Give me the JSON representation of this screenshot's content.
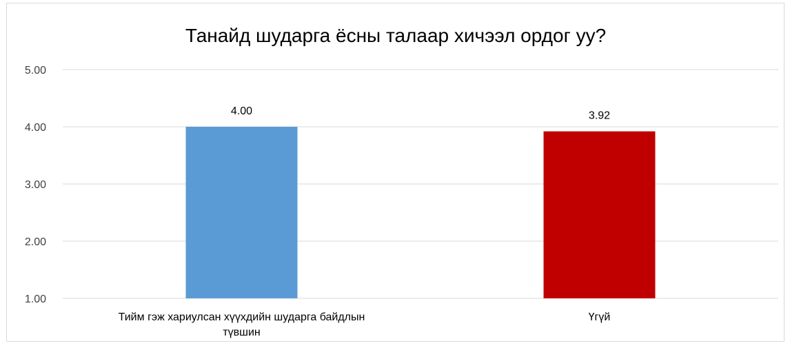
{
  "chart_data": {
    "type": "bar",
    "title": "Танайд шударга ёсны талаар хичээл ордог уу?",
    "categories": [
      [
        "Тийм гэж хариулсан хүүхдийн шударга байдлын",
        "түвшин"
      ],
      [
        "Үгүй"
      ]
    ],
    "values": [
      4.0,
      3.92
    ],
    "data_labels": [
      "4.00",
      "3.92"
    ],
    "bar_colors": [
      "#5b9bd5",
      "#c00000"
    ],
    "ylim": [
      1.0,
      5.0
    ],
    "y_ticks": [
      1.0,
      2.0,
      3.0,
      4.0,
      5.0
    ],
    "y_tick_labels": [
      "1.00",
      "2.00",
      "3.00",
      "4.00",
      "5.00"
    ],
    "grid": true,
    "legend": "none",
    "xlabel": "",
    "ylabel": ""
  }
}
